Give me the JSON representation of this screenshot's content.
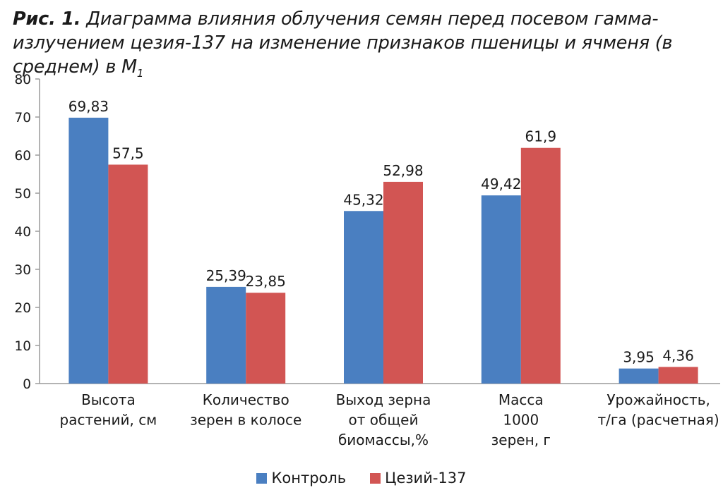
{
  "caption": {
    "prefix": "Рис. 1.",
    "text": "Диаграмма влияния облучения семян перед посевом гамма-излучением цезия-137 на изменение признаков пшеницы и ячменя (в среднем) в M",
    "subscript": "1"
  },
  "colors": {
    "control": "#4a7fc1",
    "cesium": "#d25553",
    "axis": "#9a9a9a"
  },
  "chart_data": {
    "type": "bar",
    "title": "",
    "xlabel": "",
    "ylabel": "",
    "ylim": [
      0,
      80
    ],
    "yticks": [
      0,
      10,
      20,
      30,
      40,
      50,
      60,
      70,
      80
    ],
    "grid": false,
    "legend_position": "bottom",
    "categories": [
      [
        "Высота",
        "растений, см"
      ],
      [
        "Количество",
        "зерен в колосе"
      ],
      [
        "Выход зерна",
        "от общей",
        "биомассы,%"
      ],
      [
        "Масса",
        "1000",
        "зерен, г"
      ],
      [
        "Урожайность,",
        "т/га (расчетная)"
      ]
    ],
    "series": [
      {
        "name": "Контроль",
        "values": [
          69.83,
          25.39,
          45.32,
          49.42,
          3.95
        ],
        "labels": [
          "69,83",
          "25,39",
          "45,32",
          "49,42",
          "3,95"
        ]
      },
      {
        "name": "Цезий-137",
        "values": [
          57.5,
          23.85,
          52.98,
          61.9,
          4.36
        ],
        "labels": [
          "57,5",
          "23,85",
          "52,98",
          "61,9",
          "4,36"
        ]
      }
    ]
  }
}
